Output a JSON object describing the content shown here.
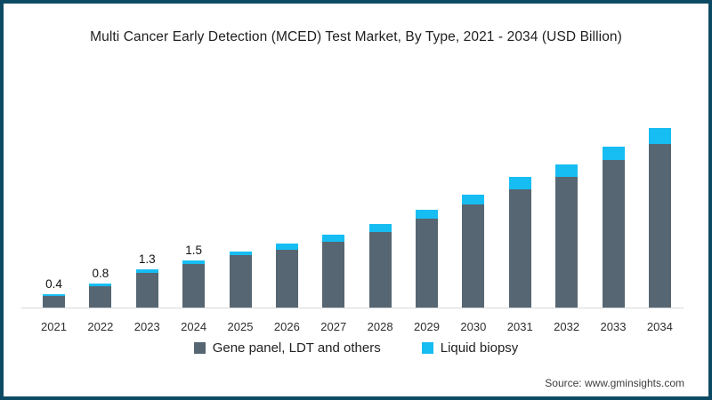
{
  "title": "Multi Cancer Early Detection (MCED) Test Market, By Type, 2021 - 2034 (USD Billion)",
  "source": "Source: www.gminsights.com",
  "colors": {
    "frame_border": "#0c4a63",
    "gene_panel": "#566672",
    "liquid_biopsy": "#16bdf2",
    "axis_line": "#d9d9d9"
  },
  "legend": {
    "items": [
      {
        "label": "Gene panel, LDT and others",
        "color": "#566672"
      },
      {
        "label": "Liquid biopsy",
        "color": "#16bdf2"
      }
    ]
  },
  "chart_data": {
    "type": "bar",
    "stacked": true,
    "title": "Multi Cancer Early Detection (MCED) Test Market, By Type, 2021 - 2034 (USD Billion)",
    "categories": [
      "2021",
      "2022",
      "2023",
      "2024",
      "2025",
      "2026",
      "2027",
      "2028",
      "2029",
      "2030",
      "2031",
      "2032",
      "2033",
      "2034"
    ],
    "series": [
      {
        "name": "Gene panel, LDT and others",
        "color": "#566672",
        "values": [
          0.38,
          0.71,
          1.15,
          1.44,
          1.72,
          1.91,
          2.17,
          2.48,
          2.91,
          3.38,
          3.89,
          4.3,
          4.84,
          5.37
        ]
      },
      {
        "name": "Liquid biopsy",
        "color": "#16bdf2",
        "values": [
          0.07,
          0.09,
          0.1,
          0.11,
          0.12,
          0.19,
          0.23,
          0.27,
          0.29,
          0.32,
          0.39,
          0.4,
          0.44,
          0.53
        ]
      }
    ],
    "totals": [
      0.45,
      0.8,
      1.25,
      1.55,
      1.84,
      2.1,
      2.4,
      2.75,
      3.2,
      3.7,
      4.28,
      4.7,
      5.28,
      5.9
    ],
    "data_labels": [
      "0.4",
      "0.8",
      "1.3",
      "1.5",
      "",
      "",
      "",
      "",
      "",
      "",
      "",
      "",
      "",
      ""
    ],
    "xlabel": "",
    "ylabel": "",
    "ylim": [
      0,
      7
    ],
    "grid": false,
    "y_axis_shown": false,
    "legend_position": "bottom"
  }
}
